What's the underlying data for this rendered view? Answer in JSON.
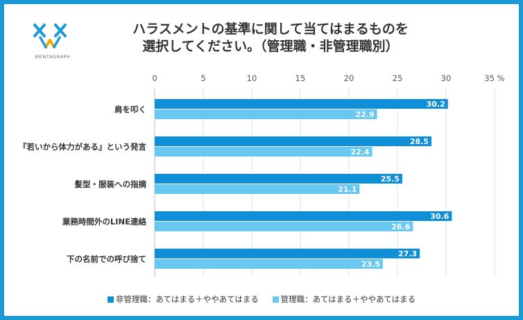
{
  "logo": {
    "text": "MENTAGRAPH"
  },
  "title_lines": [
    "ハラスメントの基準に関して当てはまるものを",
    "選択してください。（管理職・非管理職別）"
  ],
  "chart_data": {
    "type": "bar",
    "orientation": "horizontal",
    "title": "ハラスメントの基準に関して当てはまるものを選択してください。（管理職・非管理職別）",
    "categories": [
      "肩を叩く",
      "『若いから体力がある』という発言",
      "髪型・服装への指摘",
      "業務時間外のLINE連絡",
      "下の名前での呼び捨て"
    ],
    "series": [
      {
        "name": "非管理職：あてはまる＋ややあてはまる",
        "values": [
          30.2,
          28.5,
          25.5,
          30.6,
          27.3
        ],
        "color": "#0e8fd8"
      },
      {
        "name": "管理職：あてはまる＋ややあてはまる",
        "values": [
          22.9,
          22.4,
          21.1,
          26.6,
          23.5
        ],
        "color": "#68c8ef"
      }
    ],
    "xlim": [
      0,
      35
    ],
    "xticks": [
      "0",
      "5",
      "10",
      "15",
      "20",
      "25",
      "30",
      "35 %"
    ],
    "grid": true,
    "legend_position": "bottom",
    "value_labels": true
  }
}
